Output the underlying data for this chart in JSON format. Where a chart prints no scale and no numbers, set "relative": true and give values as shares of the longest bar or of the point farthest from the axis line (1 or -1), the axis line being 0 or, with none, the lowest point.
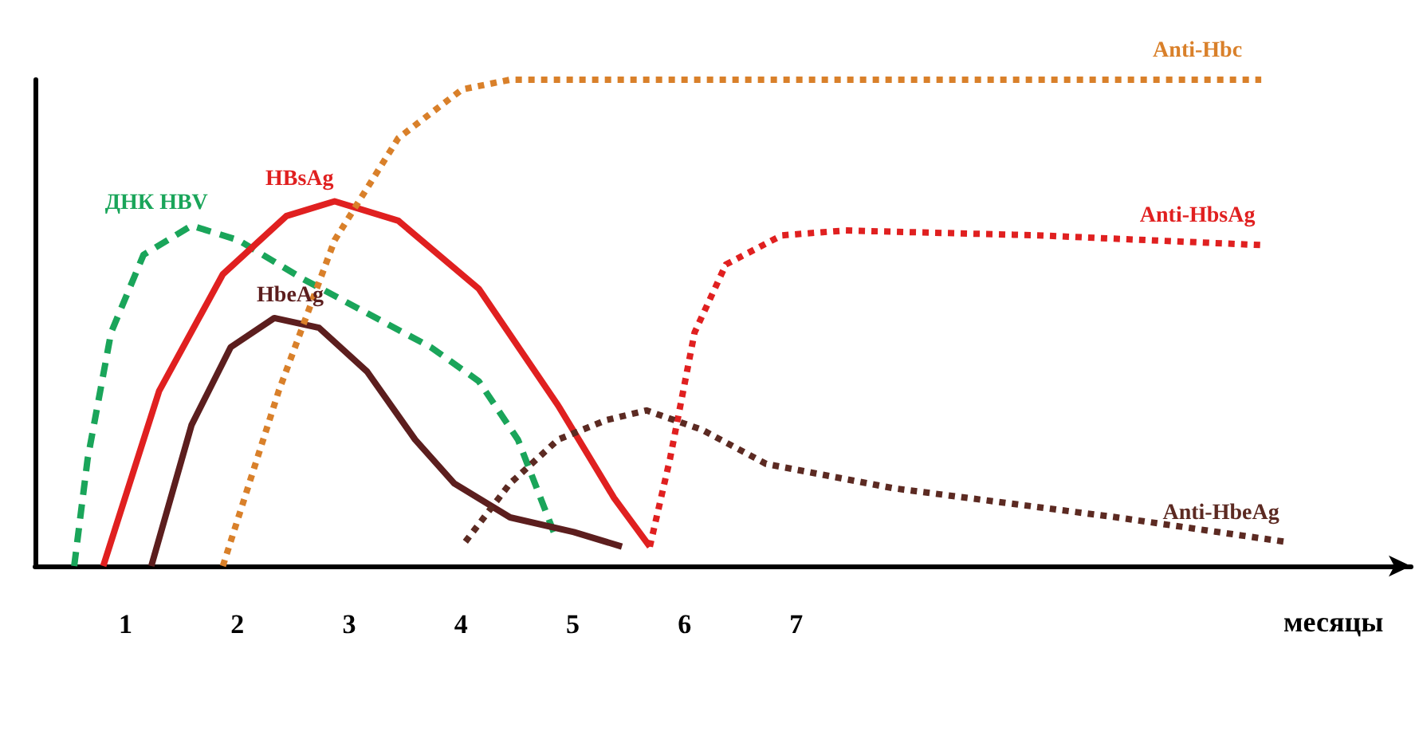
{
  "chart_data": {
    "type": "line",
    "relative": true,
    "xlabel": "месяцы",
    "xlim": [
      0.19,
      12.5
    ],
    "xticks": [
      1,
      2,
      3,
      4,
      5,
      6,
      7
    ],
    "grid": false,
    "legend": false,
    "marker": "none",
    "series": [
      {
        "name": "ДНК HBV",
        "color": "#1aa55a",
        "line_style": "dashed",
        "x": [
          0.54,
          0.66,
          0.87,
          1.16,
          1.59,
          2.01,
          2.59,
          3.16,
          3.73,
          4.16,
          4.51,
          4.83
        ],
        "values": [
          0,
          0.22,
          0.48,
          0.64,
          0.7,
          0.67,
          0.59,
          0.52,
          0.45,
          0.38,
          0.26,
          0.07
        ]
      },
      {
        "name": "HBsAg",
        "color": "#e02020",
        "line_style": "solid",
        "x": [
          0.8,
          1.3,
          1.87,
          2.44,
          2.87,
          3.44,
          4.16,
          4.87,
          5.37,
          5.69
        ],
        "values": [
          0,
          0.36,
          0.6,
          0.72,
          0.75,
          0.71,
          0.57,
          0.33,
          0.14,
          0.04
        ]
      },
      {
        "name": "HbeAg",
        "color": "#5c1e1e",
        "line_style": "solid",
        "x": [
          1.23,
          1.59,
          1.94,
          2.33,
          2.73,
          3.16,
          3.59,
          3.94,
          4.44,
          5.01,
          5.44
        ],
        "values": [
          0,
          0.29,
          0.45,
          0.51,
          0.49,
          0.4,
          0.26,
          0.17,
          0.1,
          0.07,
          0.04
        ]
      },
      {
        "name": "Anti-Hbc",
        "color": "#d9802a",
        "line_style": "dotted",
        "x": [
          1.87,
          2.37,
          2.87,
          3.44,
          4.01,
          4.44,
          5.59,
          8.44,
          11.16
        ],
        "values": [
          0,
          0.36,
          0.67,
          0.88,
          0.98,
          1,
          1,
          1,
          1
        ]
      },
      {
        "name": "Anti-HbsAg",
        "color": "#e02020",
        "line_style": "dotted",
        "x": [
          5.69,
          5.87,
          6.09,
          6.37,
          6.87,
          7.44,
          9.16,
          11.16
        ],
        "values": [
          0.04,
          0.22,
          0.48,
          0.62,
          0.68,
          0.69,
          0.68,
          0.66
        ]
      },
      {
        "name": "Anti-HbeAg",
        "color": "#5c2a22",
        "line_style": "dotted",
        "x": [
          4.04,
          4.44,
          4.87,
          5.3,
          5.66,
          6.16,
          6.73,
          7.87,
          9.87,
          11.37
        ],
        "values": [
          0.05,
          0.17,
          0.26,
          0.3,
          0.32,
          0.28,
          0.21,
          0.16,
          0.1,
          0.05
        ]
      }
    ]
  }
}
